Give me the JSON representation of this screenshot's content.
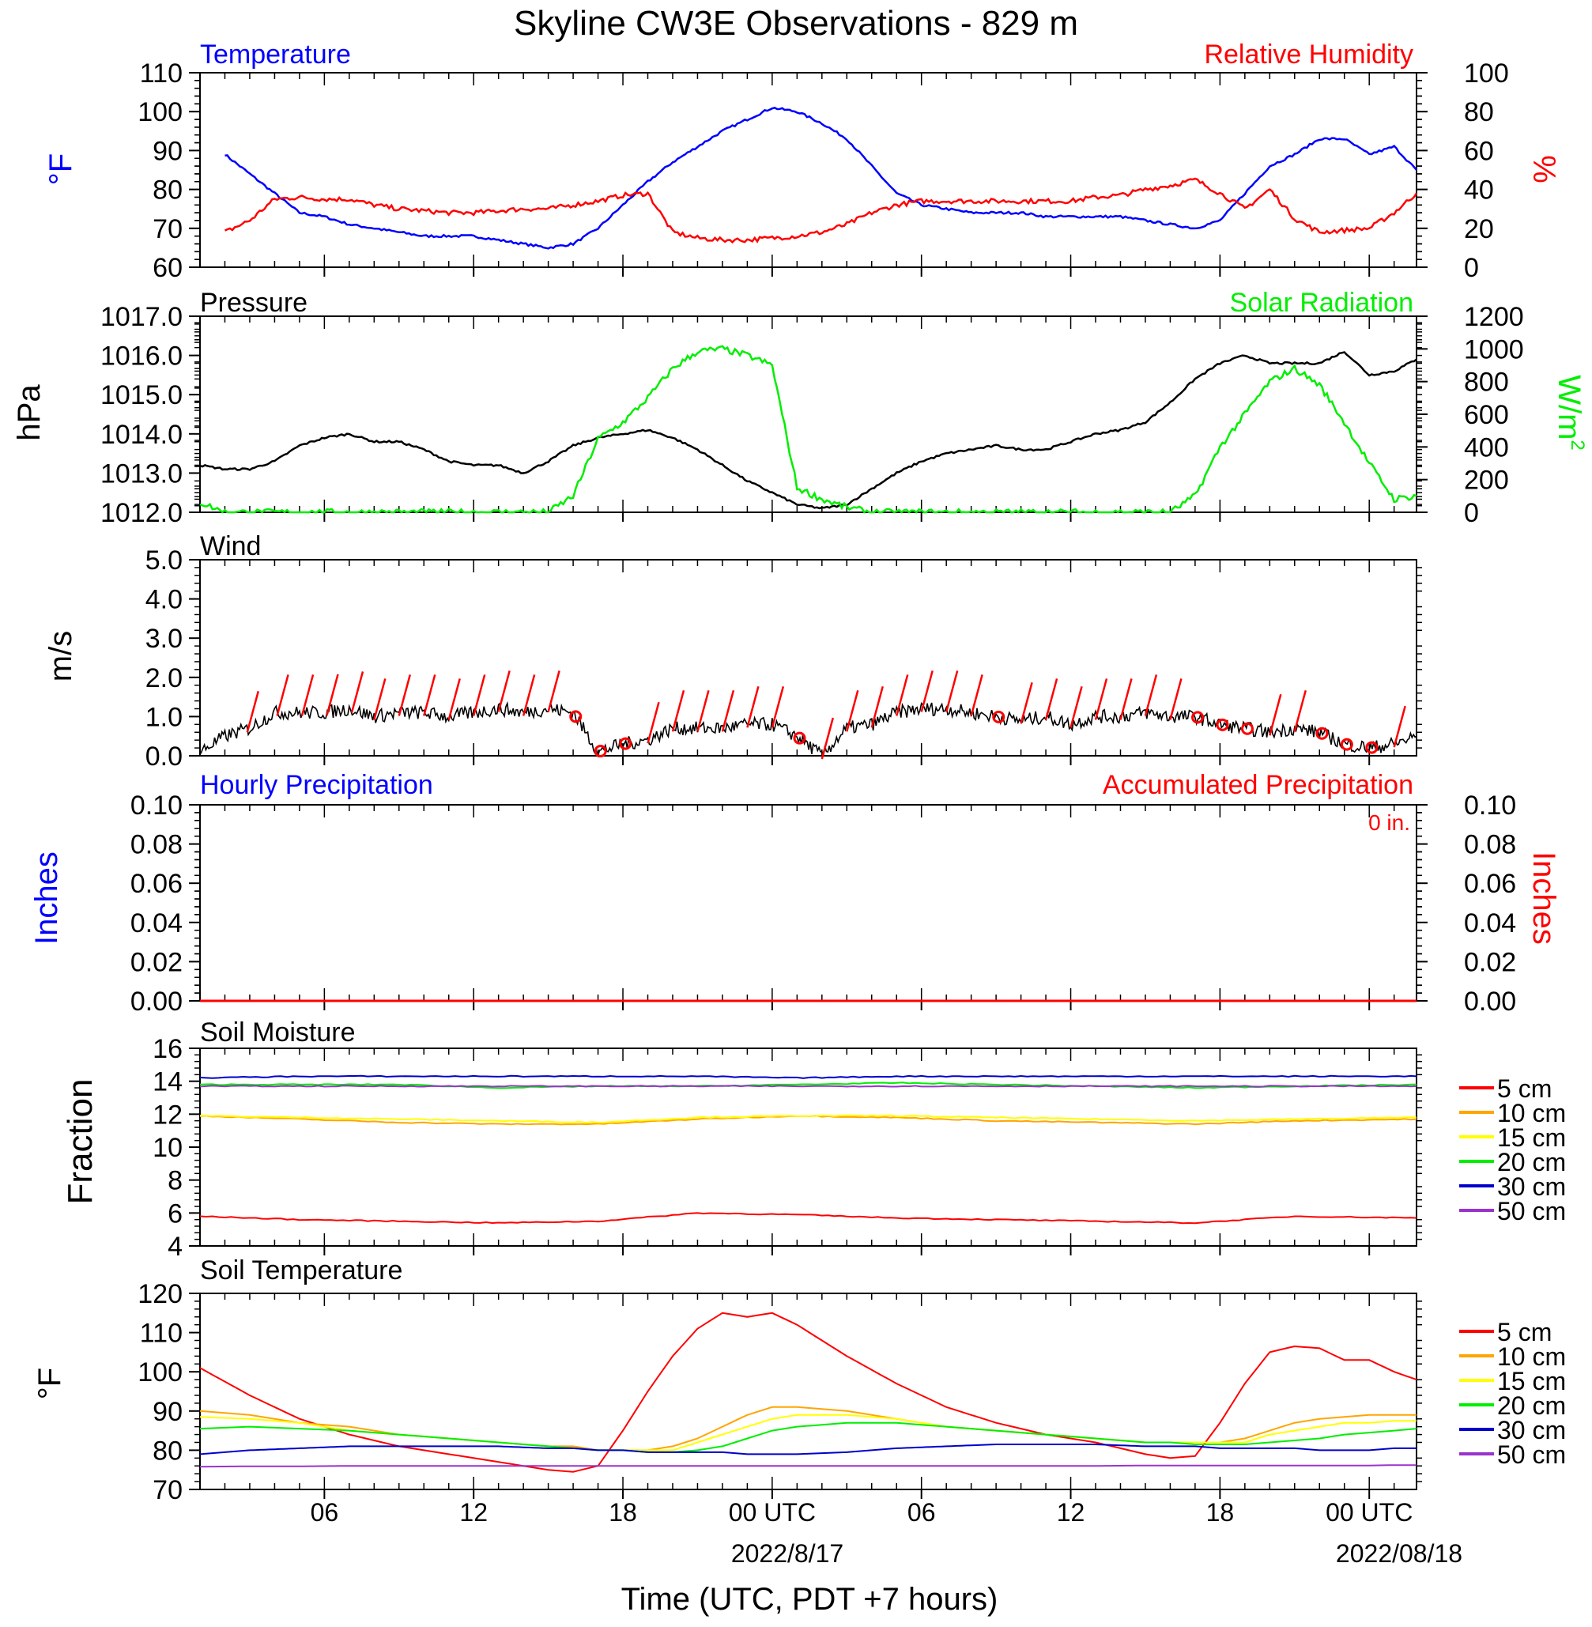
{
  "figure": {
    "title": "Skyline CW3E Observations - 829 m",
    "xlabel": "Time (UTC, PDT +7 hours)"
  },
  "colors": {
    "blue": "#0000ff",
    "red": "#ff0000",
    "green": "#00ee00",
    "black": "#000000",
    "orange": "#ffa500",
    "yellow": "#ffff00",
    "soil_blue": "#0000cc",
    "purple": "#9933cc"
  },
  "chart_data": [
    {
      "type": "line",
      "panel": "temperature-humidity",
      "title_left": "Temperature",
      "title_right": "Relative Humidity",
      "ylabel_left": "°F",
      "ylabel_right": "%",
      "ylim_left": [
        60,
        110
      ],
      "ylim_right": [
        0,
        100
      ],
      "yticks_left": [
        "60",
        "70",
        "80",
        "90",
        "100",
        "110"
      ],
      "yticks_right": [
        "0",
        "20",
        "40",
        "60",
        "80",
        "100"
      ],
      "x_hours": [
        1,
        2,
        3,
        4,
        5,
        6,
        7,
        8,
        9,
        10,
        11,
        12,
        13,
        14,
        15,
        16,
        17,
        18,
        19,
        20,
        21,
        22,
        23,
        24,
        25,
        26,
        27,
        28,
        29,
        30,
        31,
        32,
        33,
        34,
        35,
        36,
        37,
        38,
        39,
        40,
        41,
        42,
        43,
        44,
        45,
        46,
        47,
        48,
        48.9
      ],
      "series": [
        {
          "name": "Temperature",
          "axis": "left",
          "color": "blue",
          "values": [
            89,
            84,
            79,
            74,
            73,
            71,
            70,
            69,
            68,
            68,
            68,
            67,
            66,
            65,
            66,
            70,
            76,
            82,
            87,
            91,
            95,
            98,
            101,
            100,
            97,
            93,
            86,
            79,
            76,
            75,
            74,
            74,
            74,
            73,
            73,
            73,
            73,
            72,
            71,
            70,
            72,
            79,
            86,
            89,
            93,
            93,
            89,
            91,
            85
          ]
        },
        {
          "name": "Relative Humidity",
          "axis": "right",
          "color": "red",
          "values": [
            18,
            24,
            35,
            36,
            35,
            35,
            32,
            30,
            29,
            28,
            28,
            29,
            30,
            30,
            32,
            34,
            37,
            38,
            18,
            15,
            14,
            14,
            15,
            16,
            18,
            22,
            28,
            32,
            34,
            34,
            34,
            34,
            34,
            34,
            34,
            36,
            37,
            40,
            42,
            45,
            38,
            30,
            40,
            25,
            18,
            19,
            20,
            28,
            38
          ]
        }
      ]
    },
    {
      "type": "line",
      "panel": "pressure-solar",
      "title_left": "Pressure",
      "title_right": "Solar Radiation",
      "ylabel_left": "hPa",
      "ylabel_right": "W/m",
      "ylabel_right_sup": "2",
      "ylim_left": [
        1012,
        1017
      ],
      "ylim_right": [
        0,
        1200
      ],
      "yticks_left": [
        "1012.0",
        "1013.0",
        "1014.0",
        "1015.0",
        "1016.0",
        "1017.0"
      ],
      "yticks_right": [
        "0",
        "200",
        "400",
        "600",
        "800",
        "1000",
        "1200"
      ],
      "x_hours": [
        0,
        1,
        2,
        3,
        4,
        5,
        6,
        7,
        8,
        9,
        10,
        11,
        12,
        13,
        14,
        15,
        16,
        17,
        18,
        19,
        20,
        21,
        22,
        23,
        24,
        25,
        26,
        27,
        28,
        29,
        30,
        31,
        32,
        33,
        34,
        35,
        36,
        37,
        38,
        39,
        40,
        41,
        42,
        43,
        44,
        45,
        46,
        47,
        48,
        48.9
      ],
      "series": [
        {
          "name": "Pressure",
          "axis": "left",
          "color": "black",
          "values": [
            1013.2,
            1013.1,
            1013.1,
            1013.3,
            1013.7,
            1013.9,
            1014.0,
            1013.8,
            1013.8,
            1013.6,
            1013.3,
            1013.2,
            1013.2,
            1013.0,
            1013.3,
            1013.7,
            1013.9,
            1014.0,
            1014.1,
            1013.9,
            1013.6,
            1013.2,
            1012.8,
            1012.5,
            1012.2,
            1012.1,
            1012.2,
            1012.6,
            1013.0,
            1013.3,
            1013.5,
            1013.6,
            1013.7,
            1013.6,
            1013.6,
            1013.8,
            1014.0,
            1014.1,
            1014.3,
            1014.8,
            1015.4,
            1015.8,
            1016.0,
            1015.8,
            1015.8,
            1015.8,
            1016.1,
            1015.5,
            1015.6,
            1015.9
          ]
        },
        {
          "name": "Solar Radiation",
          "axis": "right",
          "color": "green",
          "values": [
            60,
            0,
            0,
            0,
            0,
            0,
            0,
            0,
            0,
            0,
            0,
            0,
            0,
            0,
            0,
            100,
            450,
            550,
            700,
            880,
            985,
            1000,
            960,
            900,
            150,
            80,
            30,
            0,
            0,
            0,
            0,
            0,
            0,
            0,
            0,
            0,
            0,
            0,
            0,
            0,
            100,
            400,
            600,
            800,
            880,
            780,
            550,
            300,
            80,
            100
          ]
        }
      ]
    },
    {
      "type": "line",
      "panel": "wind",
      "title_left": "Wind",
      "ylabel_left": "m/s",
      "ylim_left": [
        0,
        5
      ],
      "yticks_left": [
        "0.0",
        "1.0",
        "2.0",
        "3.0",
        "4.0",
        "5.0"
      ],
      "x_hours": [
        0,
        1,
        2,
        3,
        4,
        5,
        6,
        7,
        8,
        9,
        10,
        11,
        12,
        13,
        14,
        15,
        16,
        17,
        18,
        19,
        20,
        21,
        22,
        23,
        24,
        25,
        26,
        27,
        28,
        29,
        30,
        31,
        32,
        33,
        34,
        35,
        36,
        37,
        38,
        39,
        40,
        41,
        42,
        43,
        44,
        45,
        46,
        47,
        48,
        48.9
      ],
      "series": [
        {
          "name": "Wind speed",
          "color": "black",
          "values": [
            0.1,
            0.5,
            0.7,
            1.1,
            1.1,
            1.1,
            1.2,
            1.0,
            1.1,
            1.1,
            1.0,
            1.1,
            1.2,
            1.1,
            1.2,
            1.1,
            0.1,
            0.3,
            0.4,
            0.7,
            0.7,
            0.7,
            0.8,
            0.8,
            0.5,
            0.0,
            0.7,
            0.8,
            1.1,
            1.2,
            1.2,
            1.1,
            1.0,
            0.9,
            1.0,
            0.8,
            1.0,
            1.0,
            1.1,
            1.0,
            1.0,
            0.8,
            0.7,
            0.6,
            0.7,
            0.6,
            0.3,
            0.2,
            0.3,
            0.5
          ]
        }
      ],
      "barb_hours": [
        1.9,
        3.1,
        4.1,
        5.1,
        6.1,
        7.0,
        8.0,
        9.0,
        10.0,
        11.0,
        12.0,
        13.0,
        14.0,
        15.0,
        16.0,
        17.0,
        18.0,
        19.0,
        20.0,
        21.0,
        22.0,
        23.0,
        24.0,
        25.0,
        26.0,
        27.0,
        28.0,
        29.0,
        30.0,
        31.0,
        32.0,
        33.0,
        34.0,
        35.0,
        36.0,
        37.0,
        38.0,
        39.0,
        40.0,
        41.0,
        42.0,
        43.0,
        44.0,
        45.0,
        46.0,
        47.0,
        48.0
      ],
      "calm_hours": [
        15.1,
        16.1,
        17.1,
        24.1,
        32.1,
        40.1,
        41.1,
        42.1,
        45.1,
        46.1,
        47.1
      ]
    },
    {
      "type": "line",
      "panel": "precipitation",
      "title_left": "Hourly Precipitation",
      "title_right": "Accumulated Precipitation",
      "annotation": "0 in.",
      "ylabel_left": "Inches",
      "ylabel_right": "Inches",
      "ylim_left": [
        0,
        0.1
      ],
      "yticks_left": [
        "0.00",
        "0.02",
        "0.04",
        "0.06",
        "0.08",
        "0.10"
      ],
      "yticks_right": [
        "0.00",
        "0.02",
        "0.04",
        "0.06",
        "0.08",
        "0.10"
      ],
      "x_hours": [
        0,
        48.9
      ],
      "series": [
        {
          "name": "Hourly Precipitation",
          "color": "blue",
          "values": [
            0,
            0
          ]
        },
        {
          "name": "Accumulated Precipitation",
          "color": "red",
          "values": [
            0,
            0
          ]
        }
      ]
    },
    {
      "type": "line",
      "panel": "soil-moisture",
      "title_left": "Soil Moisture",
      "ylabel_left": "Fraction",
      "ylim_left": [
        4,
        16
      ],
      "yticks_left": [
        "4",
        "6",
        "8",
        "10",
        "12",
        "14",
        "16"
      ],
      "x_hours": [
        0,
        4,
        8,
        12,
        16,
        20,
        24,
        28,
        32,
        36,
        40,
        44,
        48.9
      ],
      "series": [
        {
          "name": "5 cm",
          "color": "red",
          "values": [
            5.8,
            5.6,
            5.5,
            5.4,
            5.5,
            6.0,
            5.9,
            5.7,
            5.6,
            5.5,
            5.4,
            5.8,
            5.7
          ]
        },
        {
          "name": "10 cm",
          "color": "orange",
          "values": [
            11.9,
            11.7,
            11.5,
            11.4,
            11.4,
            11.7,
            11.9,
            11.8,
            11.6,
            11.5,
            11.4,
            11.6,
            11.7
          ]
        },
        {
          "name": "15 cm",
          "color": "yellow",
          "values": [
            11.9,
            11.8,
            11.7,
            11.6,
            11.5,
            11.8,
            11.9,
            11.9,
            11.8,
            11.7,
            11.6,
            11.7,
            11.8
          ]
        },
        {
          "name": "20 cm",
          "color": "green",
          "values": [
            13.8,
            13.8,
            13.8,
            13.6,
            13.7,
            13.7,
            13.8,
            13.9,
            13.8,
            13.7,
            13.6,
            13.7,
            13.8
          ]
        },
        {
          "name": "30 cm",
          "color": "soil_blue",
          "values": [
            14.2,
            14.3,
            14.3,
            14.3,
            14.3,
            14.3,
            14.2,
            14.3,
            14.3,
            14.3,
            14.3,
            14.3,
            14.3
          ]
        },
        {
          "name": "50 cm",
          "color": "purple",
          "values": [
            13.7,
            13.7,
            13.7,
            13.7,
            13.7,
            13.7,
            13.7,
            13.7,
            13.7,
            13.7,
            13.7,
            13.7,
            13.7
          ]
        }
      ]
    },
    {
      "type": "line",
      "panel": "soil-temperature",
      "title_left": "Soil Temperature",
      "ylabel_left": "°F",
      "ylim_left": [
        70,
        120
      ],
      "yticks_left": [
        "70",
        "80",
        "90",
        "100",
        "110",
        "120"
      ],
      "x_hours": [
        0,
        2,
        4,
        6,
        8,
        10,
        12,
        14,
        15,
        16,
        17,
        18,
        19,
        20,
        21,
        22,
        23,
        24,
        26,
        28,
        30,
        32,
        34,
        36,
        38,
        39,
        40,
        41,
        42,
        43,
        44,
        45,
        46,
        47,
        48,
        48.9
      ],
      "series": [
        {
          "name": "5 cm",
          "color": "red",
          "values": [
            101,
            94,
            88,
            84,
            81,
            79,
            77,
            75,
            74.5,
            76,
            85,
            95,
            104,
            111,
            115,
            114,
            115,
            112,
            104,
            97,
            91,
            87,
            84,
            82,
            79,
            78,
            78.5,
            87,
            97,
            105,
            106.5,
            106,
            103,
            103,
            100,
            98
          ]
        },
        {
          "name": "10 cm",
          "color": "orange",
          "values": [
            90,
            89,
            87,
            86,
            84,
            83,
            82,
            81,
            81,
            80,
            80,
            80,
            81,
            83,
            86,
            89,
            91,
            91,
            90,
            88,
            86,
            85,
            84,
            83,
            82,
            82,
            82,
            82,
            83,
            85,
            87,
            88,
            88.5,
            89,
            89,
            89
          ]
        },
        {
          "name": "15 cm",
          "color": "yellow",
          "values": [
            88.5,
            88,
            87,
            85,
            84,
            83,
            82,
            81,
            80.5,
            80,
            80,
            80,
            80,
            82,
            84,
            86,
            88,
            89,
            89,
            88,
            86,
            85,
            84,
            83,
            82,
            82,
            82,
            82,
            82,
            84,
            85,
            86,
            87,
            87,
            87.5,
            87.5
          ]
        },
        {
          "name": "20 cm",
          "color": "green",
          "values": [
            85.5,
            86,
            85.5,
            85,
            84,
            83,
            82,
            81,
            80.5,
            80,
            80,
            79.5,
            79.5,
            80,
            81,
            83,
            85,
            86,
            87,
            87,
            86,
            85,
            84,
            83,
            82,
            82,
            81.5,
            81.5,
            81.5,
            82,
            82.5,
            83,
            84,
            84.5,
            85,
            85.5
          ]
        },
        {
          "name": "30 cm",
          "color": "soil_blue",
          "values": [
            79,
            80,
            80.5,
            81,
            81,
            81,
            81,
            80.5,
            80.5,
            80,
            80,
            79.5,
            79.5,
            79.5,
            79.5,
            79,
            79,
            79,
            79.5,
            80.5,
            81,
            81.5,
            81.5,
            81.5,
            81,
            81,
            81,
            80.5,
            80.5,
            80.5,
            80.5,
            80,
            80,
            80,
            80.5,
            80.5
          ]
        },
        {
          "name": "50 cm",
          "color": "purple",
          "values": [
            75.8,
            75.9,
            75.9,
            76,
            76,
            76,
            76,
            76,
            76,
            76,
            76,
            76,
            76,
            76,
            76,
            76,
            76,
            76,
            76,
            76,
            76,
            76,
            76,
            76,
            76.1,
            76.1,
            76.1,
            76.1,
            76.1,
            76.1,
            76.1,
            76.1,
            76.1,
            76.1,
            76.2,
            76.2
          ]
        }
      ]
    }
  ],
  "time_axis": {
    "xlim_hours": [
      0,
      48.9
    ],
    "tick_hours": [
      5,
      11,
      17,
      23,
      29,
      35,
      41,
      47
    ],
    "tick_labels": [
      "06",
      "12",
      "18",
      "00 UTC",
      "06",
      "12",
      "18",
      "00 UTC"
    ],
    "date_label_1": "2022/8/17",
    "date_label_2": "2022/08/18"
  },
  "legend_items": [
    "5 cm",
    "10 cm",
    "15 cm",
    "20 cm",
    "30 cm",
    "50 cm"
  ]
}
